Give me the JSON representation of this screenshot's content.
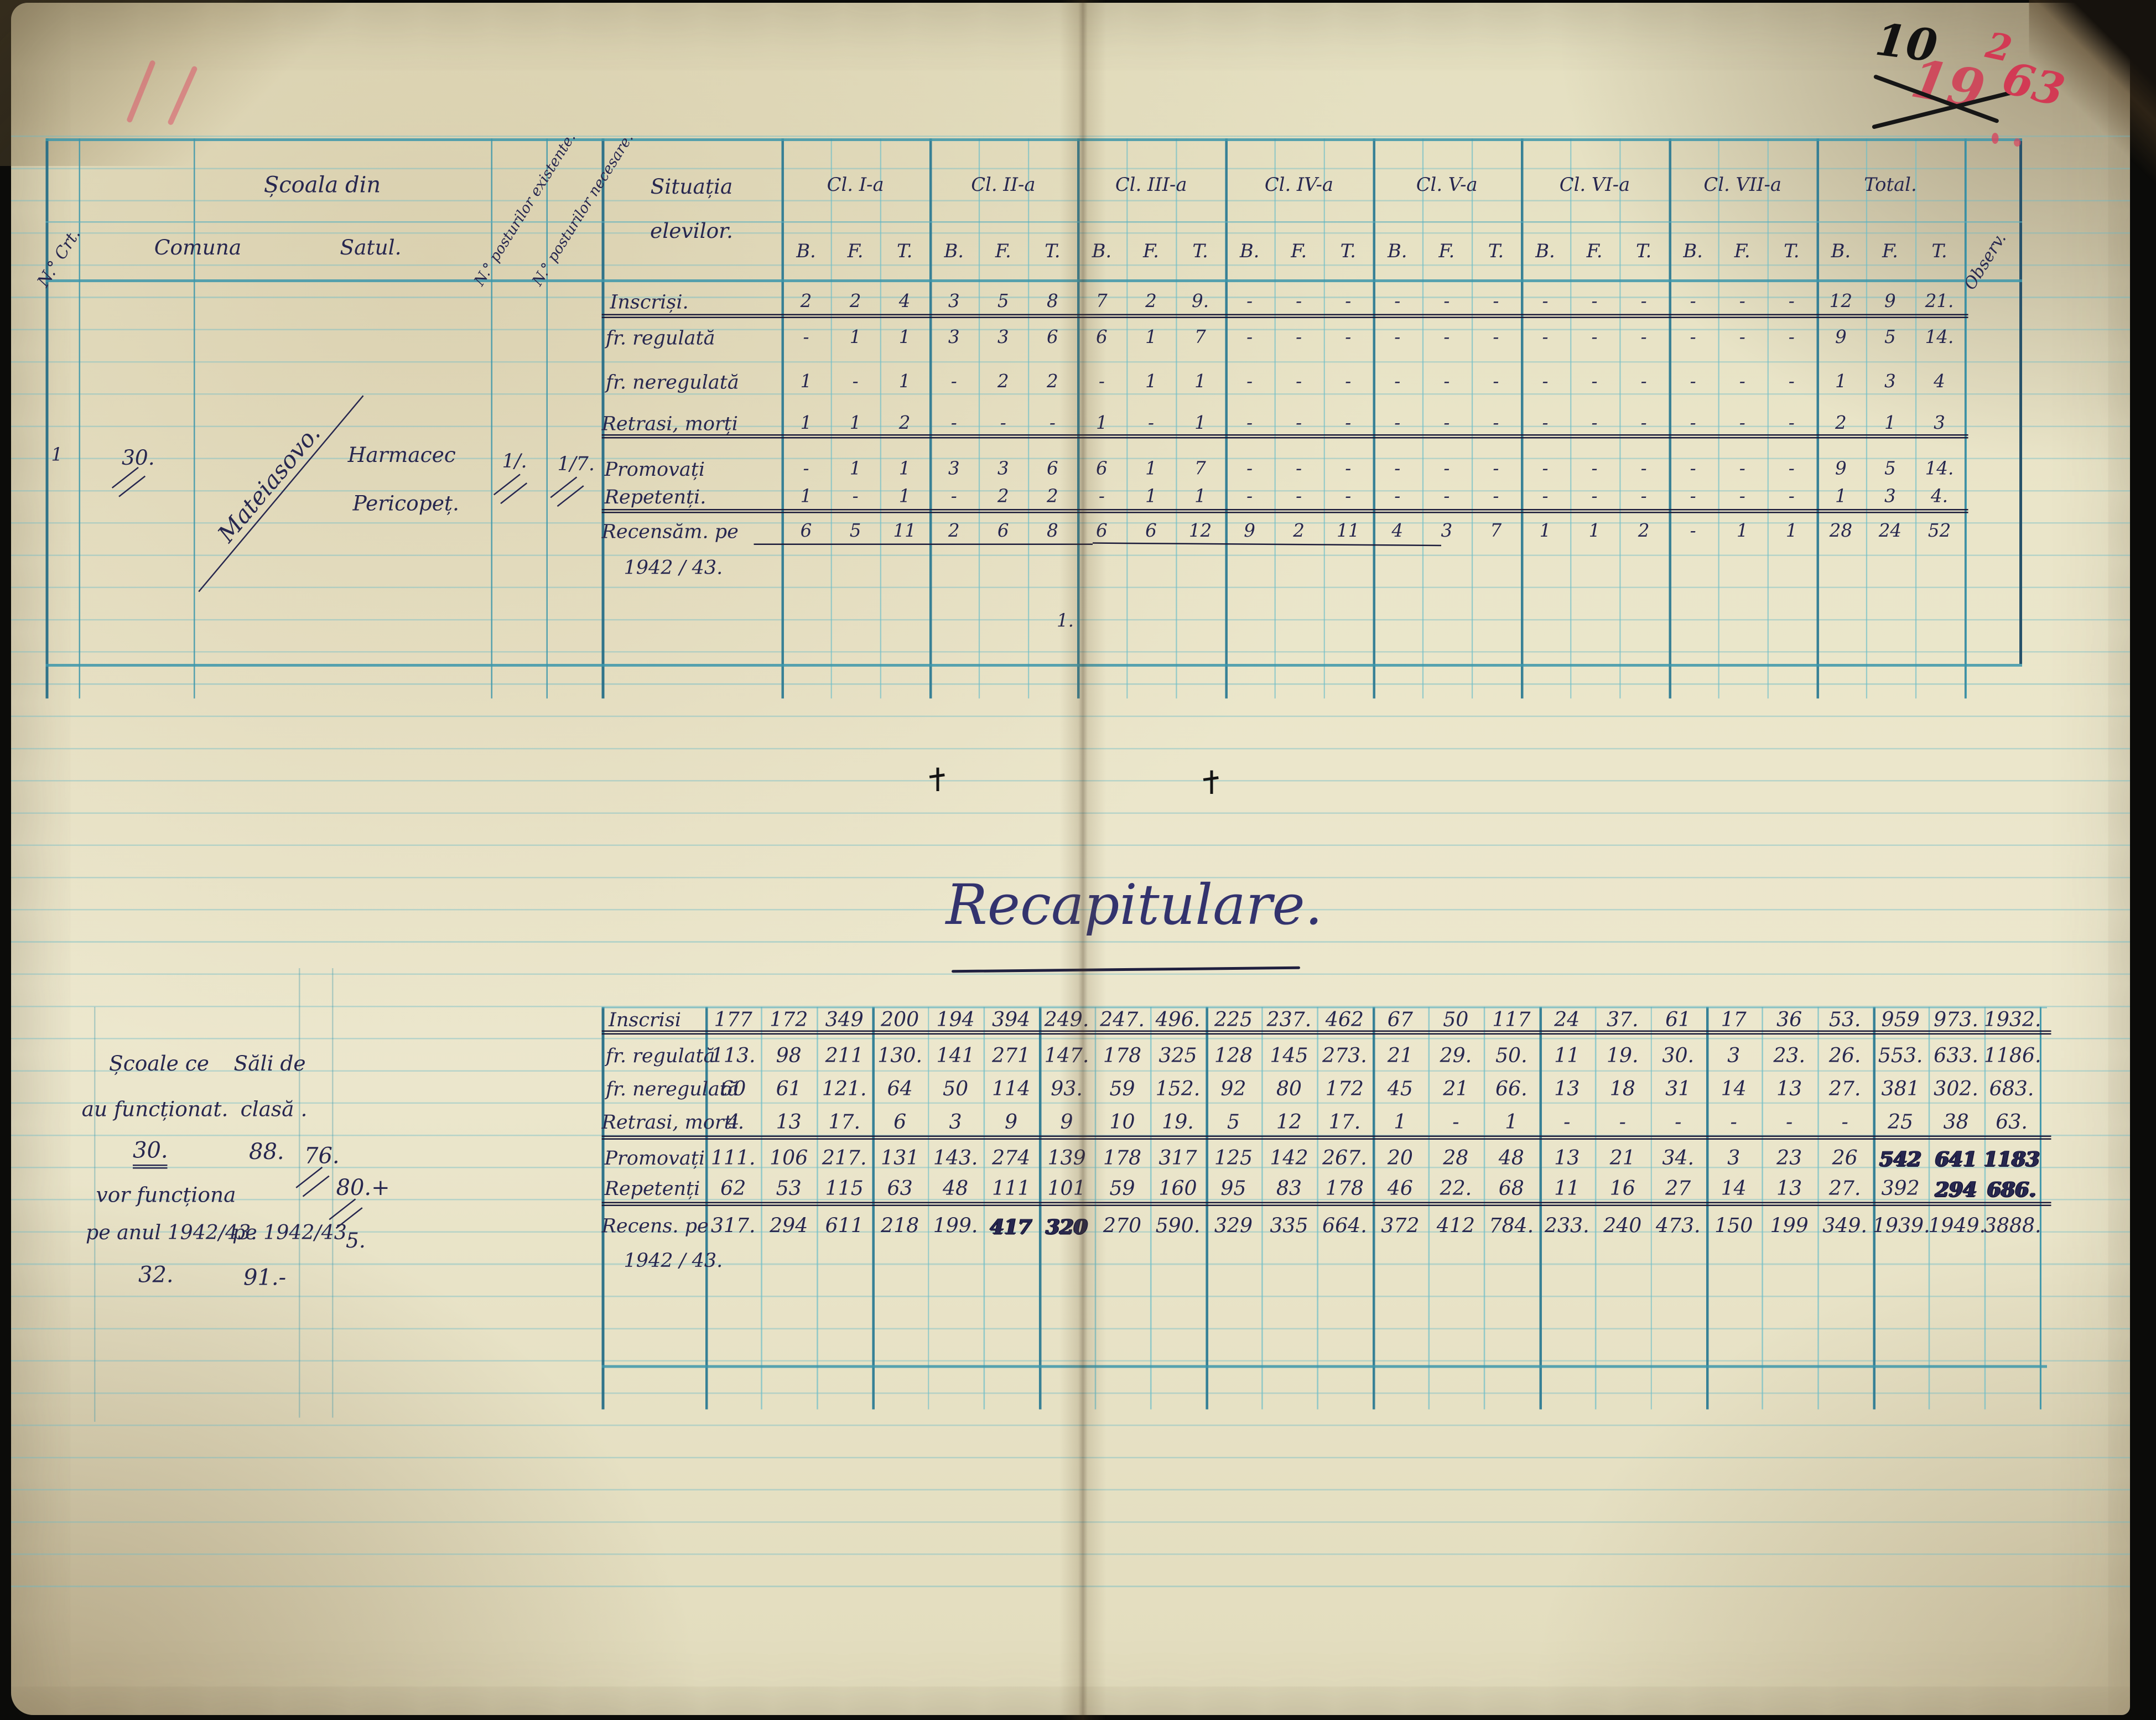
{
  "corner_marks": {
    "top_right_black": "10",
    "top_right_red_old": "19",
    "top_right_red_sup": "2",
    "top_right_red_new": "63"
  },
  "table1": {
    "header": {
      "nr_crt": "N.° Crt.",
      "scoala_din": "Școala din",
      "comuna": "Comuna",
      "satul": "Satul.",
      "posturi_existente": "N.° posturilor existente.",
      "posturi_necesare": "N.° posturilor necesare.",
      "situatia_1": "Situația",
      "situatia_2": "elevilor.",
      "observ": "Observ.",
      "class_titles": [
        "Cl. I-a",
        "Cl. II-a",
        "Cl. III-a",
        "Cl. IV-a",
        "Cl. V-a",
        "Cl. VI-a",
        "Cl. VII-a",
        "Total."
      ],
      "bft_row": [
        "B.",
        "F.",
        "T.",
        "B.",
        "F.",
        "T.",
        "B.",
        "F.",
        "T.",
        "B.",
        "F.",
        "T.",
        "B.",
        "F.",
        "T.",
        "B.",
        "F.",
        "T.",
        "B.",
        "F.",
        "T.",
        "B.",
        "F.",
        "T."
      ]
    },
    "school": {
      "nr": "1",
      "comuna_nr": "30.",
      "comuna_name": "Mateiasovo.",
      "satul_1": "Harmacec",
      "satul_2": "Pericopeț.",
      "posturi_existente": "1/.",
      "posturi_necesare": "1/7."
    },
    "rows": [
      {
        "label": "Inscriși.",
        "values": [
          "2",
          "2",
          "4",
          "3",
          "5",
          "8",
          "7",
          "2",
          "9.",
          "-",
          "-",
          "-",
          "-",
          "-",
          "-",
          "-",
          "-",
          "-",
          "-",
          "-",
          "-",
          "12",
          "9",
          "21."
        ]
      },
      {
        "label": "fr. regulată",
        "values": [
          "-",
          "1",
          "1",
          "3",
          "3",
          "6",
          "6",
          "1",
          "7",
          "-",
          "-",
          "-",
          "-",
          "-",
          "-",
          "-",
          "-",
          "-",
          "-",
          "-",
          "-",
          "9",
          "5",
          "14."
        ]
      },
      {
        "label": "fr. neregulată",
        "values": [
          "1",
          "-",
          "1",
          "-",
          "2",
          "2",
          "-",
          "1",
          "1",
          "-",
          "-",
          "-",
          "-",
          "-",
          "-",
          "-",
          "-",
          "-",
          "-",
          "-",
          "-",
          "1",
          "3",
          "4"
        ]
      },
      {
        "label": "Retrasi, morți",
        "values": [
          "1",
          "1",
          "2",
          "-",
          "-",
          "-",
          "1",
          "-",
          "1",
          "-",
          "-",
          "-",
          "-",
          "-",
          "-",
          "-",
          "-",
          "-",
          "-",
          "-",
          "-",
          "2",
          "1",
          "3"
        ]
      },
      {
        "label": "Promovați",
        "values": [
          "-",
          "1",
          "1",
          "3",
          "3",
          "6",
          "6",
          "1",
          "7",
          "-",
          "-",
          "-",
          "-",
          "-",
          "-",
          "-",
          "-",
          "-",
          "-",
          "-",
          "-",
          "9",
          "5",
          "14."
        ]
      },
      {
        "label": "Repetenți.",
        "values": [
          "1",
          "-",
          "1",
          "-",
          "2",
          "2",
          "-",
          "1",
          "1",
          "-",
          "-",
          "-",
          "-",
          "-",
          "-",
          "-",
          "-",
          "-",
          "-",
          "-",
          "-",
          "1",
          "3",
          "4."
        ]
      },
      {
        "label": "Recensăm. pe",
        "label2": "1942 / 43.",
        "values": [
          "6",
          "5",
          "11",
          "2",
          "6",
          "8",
          "6",
          "6",
          "12",
          "9",
          "2",
          "11",
          "4",
          "3",
          "7",
          "1",
          "1",
          "2",
          "-",
          "1",
          "1",
          "28",
          "24",
          "52"
        ]
      }
    ],
    "footnote": "1."
  },
  "recap": {
    "title": "Recapitulare.",
    "left_notes": {
      "schools_1": "Școale ce",
      "schools_2": "au funcționat.",
      "schools_count": "30.",
      "rooms_1": "Săli de",
      "rooms_2": "clasă .",
      "rooms_count": "88.",
      "posts_existing": "76.",
      "posts_plus": "80.+",
      "will_run_1": "vor funcționa",
      "will_run_2": "pe anul 1942/43.",
      "rooms_year": "pe 1942/43.",
      "posts_extra": "5.",
      "schools_next": "32.",
      "rooms_next": "91.-"
    },
    "rows": [
      {
        "label": "Inscrisi",
        "values": [
          "177",
          "172",
          "349",
          "200",
          "194",
          "394",
          "249.",
          "247.",
          "496.",
          "225",
          "237.",
          "462",
          "67",
          "50",
          "117",
          "24",
          "37.",
          "61",
          "17",
          "36",
          "53.",
          "959",
          "973.",
          "1932."
        ]
      },
      {
        "label": "fr. regulată",
        "values": [
          "113.",
          "98",
          "211",
          "130.",
          "141",
          "271",
          "147.",
          "178",
          "325",
          "128",
          "145",
          "273.",
          "21",
          "29.",
          "50.",
          "11",
          "19.",
          "30.",
          "3",
          "23.",
          "26.",
          "553.",
          "633.",
          "1186."
        ]
      },
      {
        "label": "fr. neregulată",
        "values": [
          "60",
          "61",
          "121.",
          "64",
          "50",
          "114",
          "93.",
          "59",
          "152.",
          "92",
          "80",
          "172",
          "45",
          "21",
          "66.",
          "13",
          "18",
          "31",
          "14",
          "13",
          "27.",
          "381",
          "302.",
          "683."
        ]
      },
      {
        "label": "Retrasi, morti.",
        "values": [
          "4",
          "13",
          "17.",
          "6",
          "3",
          "9",
          "9",
          "10",
          "19.",
          "5",
          "12",
          "17.",
          "1",
          "-",
          "1",
          "-",
          "-",
          "-",
          "-",
          "-",
          "-",
          "25",
          "38",
          "63."
        ]
      },
      {
        "label": "Promovați",
        "values": [
          "111.",
          "106",
          "217.",
          "131",
          "143.",
          "274",
          "139",
          "178",
          "317",
          "125",
          "142",
          "267.",
          "20",
          "28",
          "48",
          "13",
          "21",
          "34.",
          "3",
          "23",
          "26",
          "542*",
          "641*",
          "1183*"
        ]
      },
      {
        "label": "Repetenți",
        "values": [
          "62",
          "53",
          "115",
          "63",
          "48",
          "111",
          "101",
          "59",
          "160",
          "95",
          "83",
          "178",
          "46",
          "22.",
          "68",
          "11",
          "16",
          "27",
          "14",
          "13",
          "27.",
          "392",
          "294*",
          "686.*"
        ]
      },
      {
        "label": "Recens. pe",
        "label2": "1942 / 43.",
        "values": [
          "317.",
          "294",
          "611",
          "218",
          "199.",
          "417*",
          "320*",
          "270",
          "590.",
          "329",
          "335",
          "664.",
          "372",
          "412",
          "784.",
          "233.",
          "240",
          "473.",
          "150",
          "199",
          "349.",
          "1939.",
          "1949.",
          "3888."
        ]
      }
    ]
  }
}
